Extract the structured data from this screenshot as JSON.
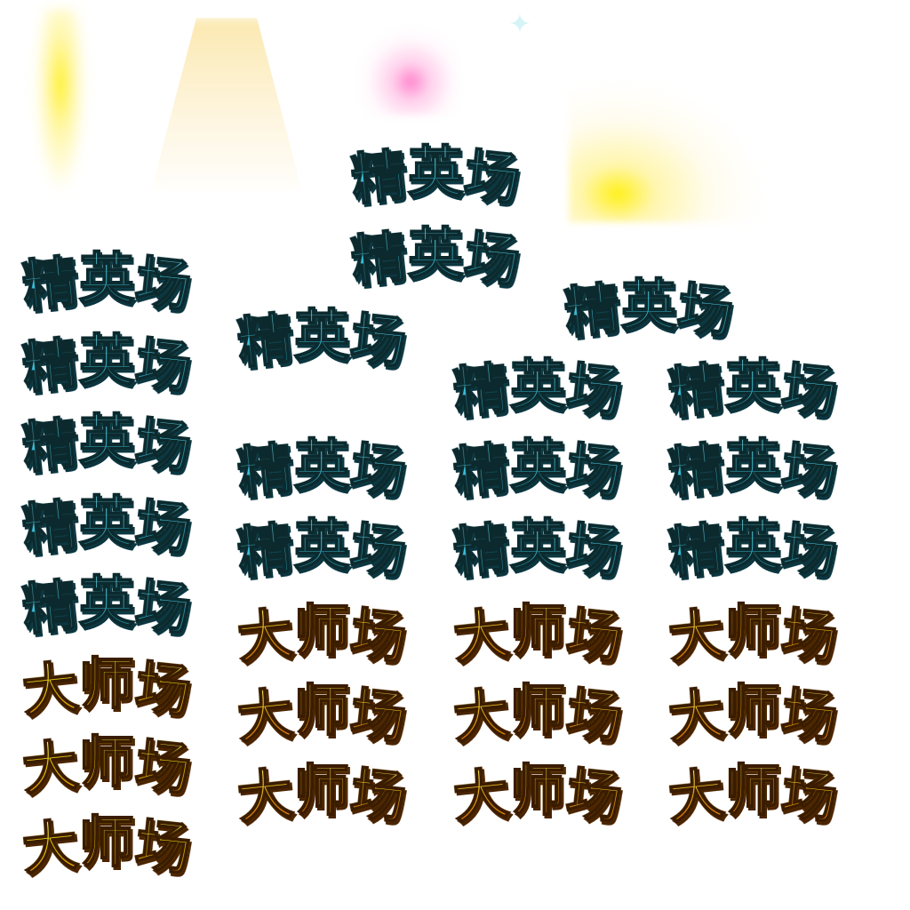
{
  "sprite_sheet": {
    "effects": [
      "yellow-glow-bar",
      "beige-light-cone",
      "pink-sparkle",
      "cyan-star",
      "yellow-flare"
    ],
    "colors": {
      "elite_fill": "#3fc6e0",
      "elite_outline": "#0c2a2e",
      "master_fill": "#ffb300",
      "master_outline": "#3a1c00"
    },
    "labels": [
      {
        "text": "精英场",
        "variant": "elite"
      },
      {
        "text": "精英场",
        "variant": "elite"
      },
      {
        "text": "精英场",
        "variant": "elite"
      },
      {
        "text": "精英场",
        "variant": "elite"
      },
      {
        "text": "精英场",
        "variant": "elite"
      },
      {
        "text": "精英场",
        "variant": "elite"
      },
      {
        "text": "精英场",
        "variant": "elite"
      },
      {
        "text": "精英场",
        "variant": "elite"
      },
      {
        "text": "精英场",
        "variant": "elite"
      },
      {
        "text": "精英场",
        "variant": "elite"
      },
      {
        "text": "精英场",
        "variant": "elite"
      },
      {
        "text": "精英场",
        "variant": "elite"
      },
      {
        "text": "精英场",
        "variant": "elite"
      },
      {
        "text": "精英场",
        "variant": "elite"
      },
      {
        "text": "精英场",
        "variant": "elite"
      },
      {
        "text": "精英场",
        "variant": "elite"
      },
      {
        "text": "精英场",
        "variant": "elite"
      },
      {
        "text": "大师场",
        "variant": "master"
      },
      {
        "text": "大师场",
        "variant": "master"
      },
      {
        "text": "大师场",
        "variant": "master"
      },
      {
        "text": "大师场",
        "variant": "master"
      },
      {
        "text": "大师场",
        "variant": "master"
      },
      {
        "text": "大师场",
        "variant": "master"
      },
      {
        "text": "大师场",
        "variant": "master"
      },
      {
        "text": "大师场",
        "variant": "master"
      },
      {
        "text": "大师场",
        "variant": "master"
      },
      {
        "text": "大师场",
        "variant": "master golden"
      },
      {
        "text": "大师场",
        "variant": "master golden"
      },
      {
        "text": "大师场",
        "variant": "master golden"
      }
    ]
  }
}
